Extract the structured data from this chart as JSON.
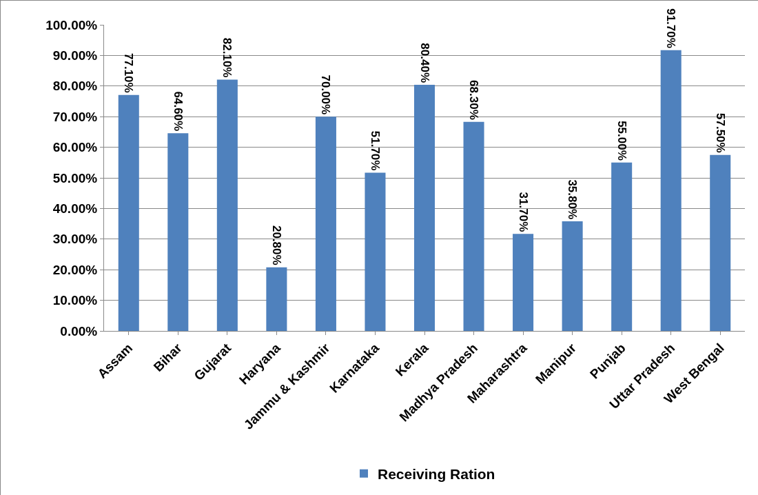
{
  "chart_data": {
    "type": "bar",
    "categories": [
      "Assam",
      "Bihar",
      "Gujarat",
      "Haryana",
      "Jammu & Kashmir",
      "Karnataka",
      "Kerala",
      "Madhya Pradesh",
      "Maharashtra",
      "Manipur",
      "Punjab",
      "Uttar Pradesh",
      "West Bengal"
    ],
    "series": [
      {
        "name": "Receiving Ration",
        "color": "#4f81bd",
        "values": [
          77.1,
          64.6,
          82.1,
          20.8,
          70.0,
          51.7,
          80.4,
          68.3,
          31.7,
          35.8,
          55.0,
          91.7,
          57.5
        ],
        "value_labels": [
          "77.10%",
          "64.60%",
          "82.10%",
          "20.80%",
          "70.00%",
          "51.70%",
          "80.40%",
          "68.30%",
          "31.70%",
          "35.80%",
          "55.00%",
          "91.70%",
          "57.50%"
        ]
      }
    ],
    "ylim": [
      0,
      100
    ],
    "yticks": [
      {
        "value": 0,
        "label": "0.00%"
      },
      {
        "value": 10,
        "label": "10.00%"
      },
      {
        "value": 20,
        "label": "20.00%"
      },
      {
        "value": 30,
        "label": "30.00%"
      },
      {
        "value": 40,
        "label": "40.00%"
      },
      {
        "value": 50,
        "label": "50.00%"
      },
      {
        "value": 60,
        "label": "60.00%"
      },
      {
        "value": 70,
        "label": "70.00%"
      },
      {
        "value": 80,
        "label": "80.00%"
      },
      {
        "value": 90,
        "label": "90.00%"
      },
      {
        "value": 100,
        "label": "100.00%"
      }
    ],
    "grid": "y",
    "legend": "bottom"
  }
}
